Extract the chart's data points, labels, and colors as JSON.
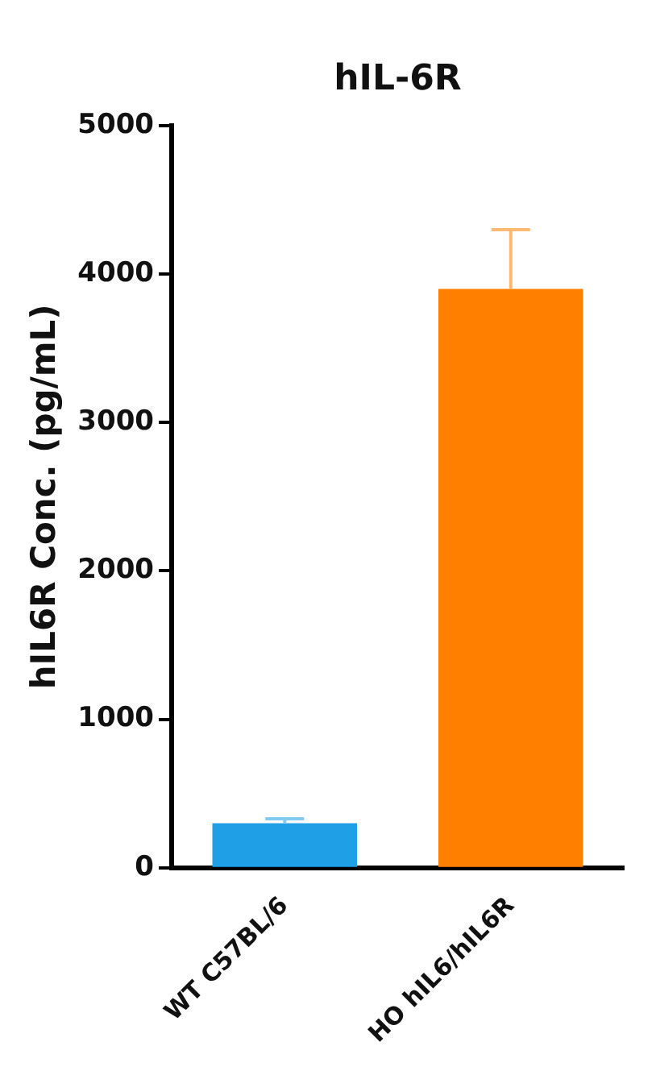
{
  "chart_data": {
    "type": "bar",
    "title": "hIL-6R",
    "ylabel": "hIL6R Conc. (pg/mL)",
    "categories": [
      "WT C57BL/6",
      "HO hIL6/hIL6R"
    ],
    "values": [
      300,
      3900
    ],
    "colors": [
      "#1e9fe6",
      "#ff8000"
    ],
    "errors": [
      [
        300,
        330
      ],
      [
        3900,
        4300
      ]
    ],
    "ylim": [
      0,
      5000
    ],
    "yticks": [
      0,
      1000,
      2000,
      3000,
      4000,
      5000
    ],
    "grid": false,
    "legend": false
  }
}
